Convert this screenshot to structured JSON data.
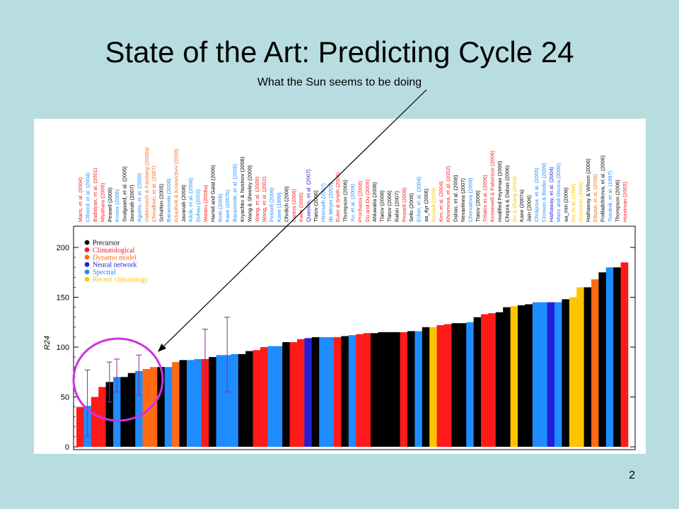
{
  "slide": {
    "title": "State of the Art: Predicting Cycle 24",
    "subtitle": "What the Sun seems to be doing",
    "page_number": "2"
  },
  "colors": {
    "background": "#b8dde0",
    "Precursor": "#000000",
    "Climatological": "#ff1a1a",
    "Dynamo model": "#ff6a14",
    "Neural network": "#2020d8",
    "Spectral": "#1e8cff",
    "Recent climatology": "#ffc400",
    "errorbar": "#8a2a9a",
    "highlight_circle": "#cc33e0"
  },
  "chart_data": {
    "type": "bar",
    "ylabel": "R24",
    "ylim": [
      0,
      200
    ],
    "yticks": [
      0,
      50,
      100,
      150,
      200
    ],
    "legend_position": "top-left",
    "legend": [
      "Precursor",
      "Climatological",
      "Dynamo model",
      "Neural network",
      "Spectral",
      "Recent climatology"
    ],
    "annotation": "What the Sun seems to be doing",
    "categories": [
      "Maris, et al. (2004)",
      "Clilverd, et al. (2004)",
      "Badalyan, et al. (2001)",
      "Miyahara (2006)",
      "Pesnell (2006)",
      "Kontor (2006)",
      "Svalgaard, et al. (2005)",
      "Javariah (2007)",
      "Aguirre, et al. (2008)",
      "Osherovich & Fainberg (2008a)",
      "Choudhuri, et al. (2007)",
      "Schatten (2005)",
      "Baranovski (2008)",
      "Kitiashvili & Kosovichev (2008)",
      "Javariah (2008)",
      "Kilcik, et al. (2008)",
      "Duhau (2003)",
      "Wataru (2008a)",
      "Hamid and Galal (2006)",
      "Roth (2008)",
      "Kane (2007b)",
      "Baranovski, et al. (2008)",
      "Kryachko & Nusinov (2008)",
      "Wang & Sheeley (2009)",
      "Wang, et al. (2009)",
      "Wang, et al. (2002)",
      "Pesnell (2006)",
      "Kane (1999)",
      "Ohrdich (2008)",
      "Lantos (2006)",
      "Kane (2006)",
      "Quassim, et al. (2007)",
      "Tlatov (2006)",
      "Hiremath (2007)",
      "de Meyer (2003)",
      "Euler & Smith (2006)",
      "Thompson (2006)",
      "Xu, et al. (2008)",
      "Prochasta (2008)",
      "Du and Du (2006)",
      "Ahluwalia (2008)",
      "Tlatov (2008)",
      "Tlatov (2006)",
      "Rabin (2007)",
      "Pesnell (2008)",
      "Sello (2006)",
      "Echer, et al. (2004)",
      "aa_4yr (2006)",
      "Pesnell (2008)",
      "Kim, et al. (2004)",
      "Khramova, et al. (2002)",
      "Dabas, et al. (2008)",
      "Nevanlinna (2007)",
      "Chervalova (2009)",
      "Tlatov (2006)",
      "Tritakis et al. (2006)",
      "Kennewell & Patterson (2006)",
      "modified Feynman (2006)",
      "Chopra & Dabas (2006)",
      "Du & Zhang (2008)",
      "Kane (2007a)",
      "Jain (2006)",
      "Cholipour, et al. (2005)",
      "Crosson & Binder (2009)",
      "Hathaway, et al. (2004)",
      "Maris and Oncica (2006)",
      "aa_min (2006)",
      "Du, et al. (2006)",
      "Horstman (2006)",
      "Hathaway & Wilson (2006)",
      "Dikpati, et al. (2006)",
      "Podladchikova, et al. (2006)",
      "Tsirulnik, et al. (1997)",
      "Thompson (2006)",
      "Horstman (2005)"
    ],
    "category_colors": [
      "Climatological",
      "Spectral",
      "Climatological",
      "Climatological",
      "Precursor",
      "Spectral",
      "Precursor",
      "Precursor",
      "Spectral",
      "Dynamo model",
      "Dynamo model",
      "Precursor",
      "Spectral",
      "Dynamo model",
      "Precursor",
      "Spectral",
      "Spectral",
      "Climatological",
      "Precursor",
      "Spectral",
      "Spectral",
      "Spectral",
      "Precursor",
      "Precursor",
      "Climatological",
      "Climatological",
      "Spectral",
      "Spectral",
      "Precursor",
      "Climatological",
      "Climatological",
      "Neural network",
      "Precursor",
      "Spectral",
      "Spectral",
      "Climatological",
      "Precursor",
      "Spectral",
      "Climatological",
      "Climatological",
      "Precursor",
      "Precursor",
      "Precursor",
      "Precursor",
      "Climatological",
      "Precursor",
      "Spectral",
      "Precursor",
      "Recent climatology",
      "Climatological",
      "Climatological",
      "Precursor",
      "Precursor",
      "Spectral",
      "Precursor",
      "Climatological",
      "Climatological",
      "Precursor",
      "Precursor",
      "Recent climatology",
      "Precursor",
      "Precursor",
      "Spectral",
      "Spectral",
      "Neural network",
      "Spectral",
      "Precursor",
      "Recent climatology",
      "Recent climatology",
      "Precursor",
      "Dynamo model",
      "Precursor",
      "Spectral",
      "Precursor",
      "Climatological"
    ],
    "values": [
      40,
      41,
      50,
      60,
      65,
      70,
      70,
      74,
      76,
      78,
      80,
      80,
      80,
      85,
      87,
      87,
      88,
      88,
      90,
      92,
      92,
      93,
      93,
      96,
      97,
      100,
      101,
      101,
      105,
      105,
      108,
      109,
      110,
      110,
      110,
      110,
      111,
      112,
      113,
      114,
      114,
      115,
      115,
      115,
      115,
      116,
      116,
      120,
      120,
      122,
      123,
      124,
      124,
      125,
      130,
      133,
      134,
      135,
      140,
      141,
      142,
      143,
      145,
      145,
      145,
      145,
      148,
      150,
      160,
      160,
      168,
      175,
      180,
      180,
      185
    ],
    "error_low": [
      null,
      10,
      null,
      null,
      45,
      55,
      null,
      null,
      52,
      null,
      null,
      null,
      null,
      null,
      null,
      null,
      null,
      55,
      null,
      null,
      55,
      null,
      null,
      null,
      null,
      null,
      null,
      null,
      null,
      null,
      null,
      null,
      null,
      null,
      null,
      null,
      null,
      null,
      null,
      null,
      null,
      null,
      null,
      null,
      null,
      null,
      null,
      null,
      null,
      null,
      null,
      null,
      null,
      null,
      null,
      null,
      null,
      null,
      null,
      null,
      null,
      null,
      null,
      null,
      null,
      null,
      null,
      null,
      null,
      null,
      null,
      null,
      null,
      null,
      null
    ],
    "error_high": [
      null,
      77,
      null,
      null,
      85,
      88,
      null,
      null,
      92,
      null,
      null,
      null,
      null,
      null,
      null,
      null,
      null,
      118,
      null,
      null,
      130,
      null,
      null,
      null,
      null,
      null,
      null,
      null,
      null,
      null,
      null,
      null,
      null,
      null,
      null,
      null,
      null,
      null,
      null,
      null,
      null,
      null,
      null,
      null,
      null,
      null,
      null,
      null,
      null,
      null,
      null,
      null,
      null,
      null,
      null,
      null,
      null,
      null,
      null,
      null,
      null,
      null,
      null,
      null,
      null,
      null,
      null,
      null,
      null,
      null,
      null,
      null,
      null,
      null,
      null
    ],
    "bar_heights": [
      40,
      41,
      50,
      60,
      65,
      70,
      70,
      74,
      76,
      78,
      80,
      80,
      80,
      85,
      87,
      87,
      88,
      88,
      90,
      92,
      92,
      93,
      93,
      96,
      97,
      100,
      101,
      101,
      105,
      105,
      108,
      109,
      110,
      110,
      110,
      110,
      111,
      112,
      113,
      114,
      114,
      115,
      115,
      115,
      115,
      116,
      116,
      120,
      120,
      122,
      123,
      124,
      124,
      125,
      130,
      133,
      134,
      135,
      140,
      141,
      142,
      143,
      145,
      145,
      145,
      145,
      148,
      150,
      160,
      160,
      168,
      175,
      180,
      180,
      185
    ]
  }
}
